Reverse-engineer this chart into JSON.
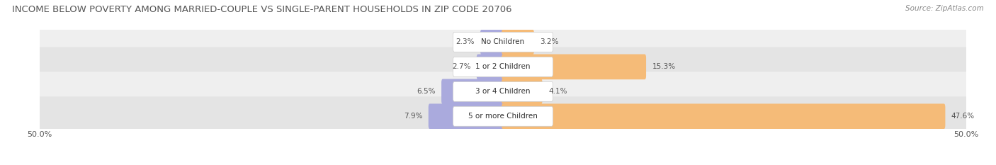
{
  "title": "INCOME BELOW POVERTY AMONG MARRIED-COUPLE VS SINGLE-PARENT HOUSEHOLDS IN ZIP CODE 20706",
  "source": "Source: ZipAtlas.com",
  "categories": [
    "No Children",
    "1 or 2 Children",
    "3 or 4 Children",
    "5 or more Children"
  ],
  "married_values": [
    2.3,
    2.7,
    6.5,
    7.9
  ],
  "single_values": [
    3.2,
    15.3,
    4.1,
    47.6
  ],
  "married_color": "#aaaadd",
  "single_color": "#f5bb78",
  "row_bg_colors": [
    "#efefef",
    "#e4e4e4",
    "#efefef",
    "#e4e4e4"
  ],
  "axis_limit": 50.0,
  "title_fontsize": 9.5,
  "source_fontsize": 7.5,
  "label_fontsize": 7.5,
  "axis_label_fontsize": 8,
  "figsize": [
    14.06,
    2.33
  ],
  "dpi": 100
}
